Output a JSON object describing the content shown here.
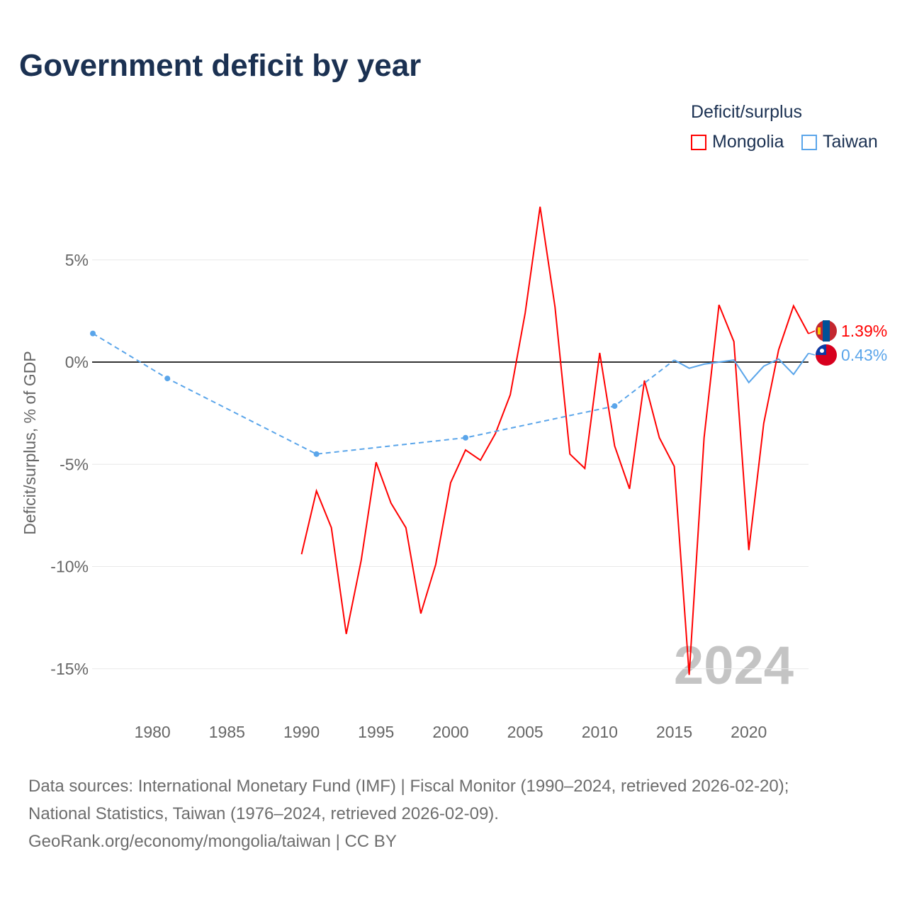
{
  "title": "Government deficit by year",
  "legend": {
    "title": "Deficit/surplus",
    "items": [
      "Mongolia",
      "Taiwan"
    ]
  },
  "watermark_year": "2024",
  "sources": [
    "Data sources: International Monetary Fund (IMF) | Fiscal Monitor (1990–2024, retrieved 2026-02-20);",
    "National Statistics, Taiwan (1976–2024, retrieved 2026-02-09).",
    "GeoRank.org/economy/mongolia/taiwan | CC BY"
  ],
  "chart_data": {
    "type": "line",
    "title": "Government deficit by year",
    "xlabel": "",
    "ylabel": "Deficit/surplus, % of GDP",
    "xlim": [
      1976,
      2024
    ],
    "ylim": [
      -17,
      9
    ],
    "xticks": [
      1980,
      1985,
      1990,
      1995,
      2000,
      2005,
      2010,
      2015,
      2020
    ],
    "yticks": [
      5,
      0,
      -5,
      -10,
      -15
    ],
    "ytick_labels": [
      "5%",
      "0%",
      "-5%",
      "-10%",
      "-15%"
    ],
    "series": [
      {
        "name": "Mongolia",
        "color": "#ff0000",
        "end_label": "1.39%",
        "x": [
          1990,
          1991,
          1992,
          1993,
          1994,
          1995,
          1996,
          1997,
          1998,
          1999,
          2000,
          2001,
          2002,
          2003,
          2004,
          2005,
          2006,
          2007,
          2008,
          2009,
          2010,
          2011,
          2012,
          2013,
          2014,
          2015,
          2016,
          2017,
          2018,
          2019,
          2020,
          2021,
          2022,
          2023,
          2024
        ],
        "y": [
          -9.4,
          -6.3,
          -8.1,
          -13.3,
          -9.7,
          -4.9,
          -6.9,
          -8.1,
          -12.3,
          -9.9,
          -5.9,
          -4.3,
          -4.8,
          -3.5,
          -1.6,
          2.4,
          7.6,
          2.7,
          -4.5,
          -5.2,
          0.45,
          -4.1,
          -6.2,
          -0.9,
          -3.7,
          -5.1,
          -15.3,
          -3.7,
          2.8,
          1.0,
          -9.2,
          -3.0,
          0.6,
          2.75,
          1.39
        ]
      },
      {
        "name": "Taiwan",
        "color": "#5aa5ea",
        "end_label": "0.43%",
        "x": [
          1976,
          1981,
          1991,
          2001,
          2011,
          2015,
          2016,
          2017,
          2018,
          2019,
          2020,
          2021,
          2022,
          2023,
          2024
        ],
        "y": [
          1.4,
          -0.8,
          -4.5,
          -3.7,
          -2.15,
          0.1,
          -0.3,
          -0.1,
          0.0,
          0.1,
          -1.0,
          -0.2,
          0.15,
          -0.6,
          0.43
        ],
        "sparse_until": 2015
      }
    ]
  }
}
